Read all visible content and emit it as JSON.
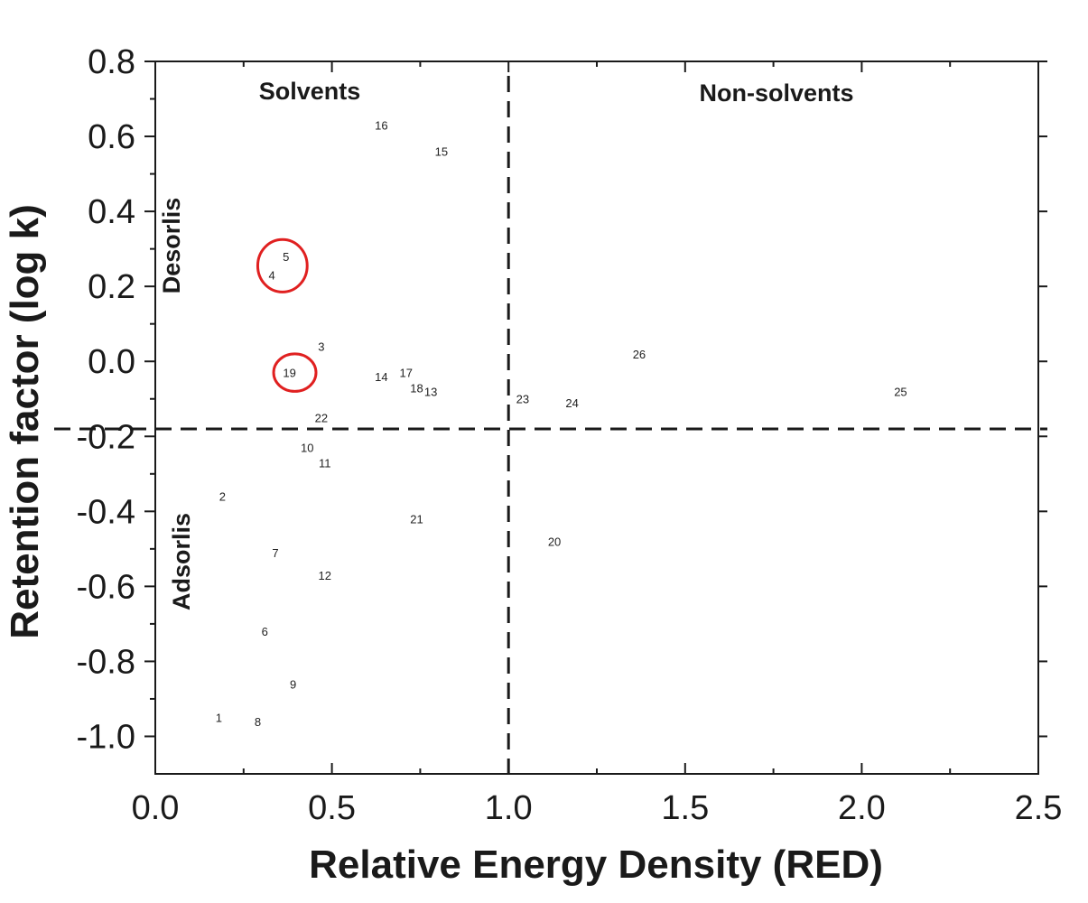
{
  "chart_data": {
    "type": "scatter",
    "title": "",
    "xlabel": "Relative Energy Density (RED)",
    "ylabel": "Retention factor (log k)",
    "xlim": [
      0.0,
      2.5
    ],
    "ylim": [
      -1.1,
      0.8
    ],
    "xticks": [
      {
        "value": 0.0,
        "label": "0.0"
      },
      {
        "value": 0.5,
        "label": "0.5"
      },
      {
        "value": 1.0,
        "label": "1.0"
      },
      {
        "value": 1.5,
        "label": "1.5"
      },
      {
        "value": 2.0,
        "label": "2.0"
      },
      {
        "value": 2.5,
        "label": "2.5"
      }
    ],
    "yticks": [
      {
        "value": 0.8,
        "label": "0.8"
      },
      {
        "value": 0.6,
        "label": "0.6"
      },
      {
        "value": 0.4,
        "label": "0.4"
      },
      {
        "value": 0.2,
        "label": "0.2"
      },
      {
        "value": 0.0,
        "label": "0.0"
      },
      {
        "value": -0.2,
        "label": "-0.2"
      },
      {
        "value": -0.4,
        "label": "-0.4"
      },
      {
        "value": -0.6,
        "label": "-0.6"
      },
      {
        "value": -0.8,
        "label": "-0.8"
      },
      {
        "value": -1.0,
        "label": "-1.0"
      }
    ],
    "grid": false,
    "reference_lines": {
      "vertical_x": 1.0,
      "horizontal_y": -0.18
    },
    "regions": {
      "solvents": "Solvents",
      "non_solvents": "Non-solvents",
      "desorlis": "Desorlis",
      "adsorlis": "Adsorlis"
    },
    "points": [
      {
        "label": "1",
        "x": 0.18,
        "y": -0.95
      },
      {
        "label": "2",
        "x": 0.19,
        "y": -0.36
      },
      {
        "label": "3",
        "x": 0.47,
        "y": 0.04
      },
      {
        "label": "4",
        "x": 0.33,
        "y": 0.23
      },
      {
        "label": "5",
        "x": 0.37,
        "y": 0.28
      },
      {
        "label": "6",
        "x": 0.31,
        "y": -0.72
      },
      {
        "label": "7",
        "x": 0.34,
        "y": -0.51
      },
      {
        "label": "8",
        "x": 0.29,
        "y": -0.96
      },
      {
        "label": "9",
        "x": 0.39,
        "y": -0.86
      },
      {
        "label": "10",
        "x": 0.43,
        "y": -0.23
      },
      {
        "label": "11",
        "x": 0.48,
        "y": -0.27
      },
      {
        "label": "12",
        "x": 0.48,
        "y": -0.57
      },
      {
        "label": "13",
        "x": 0.78,
        "y": -0.08
      },
      {
        "label": "14",
        "x": 0.64,
        "y": -0.04
      },
      {
        "label": "15",
        "x": 0.81,
        "y": 0.56
      },
      {
        "label": "16",
        "x": 0.64,
        "y": 0.63
      },
      {
        "label": "17",
        "x": 0.71,
        "y": -0.03
      },
      {
        "label": "18",
        "x": 0.74,
        "y": -0.07
      },
      {
        "label": "19",
        "x": 0.38,
        "y": -0.03
      },
      {
        "label": "20",
        "x": 1.13,
        "y": -0.48
      },
      {
        "label": "21",
        "x": 0.74,
        "y": -0.42
      },
      {
        "label": "22",
        "x": 0.47,
        "y": -0.15
      },
      {
        "label": "23",
        "x": 1.04,
        "y": -0.1
      },
      {
        "label": "24",
        "x": 1.18,
        "y": -0.11
      },
      {
        "label": "25",
        "x": 2.11,
        "y": -0.08
      },
      {
        "label": "26",
        "x": 1.37,
        "y": 0.02
      }
    ],
    "highlight_circles": [
      {
        "cx": 0.36,
        "cy": 0.255,
        "rx": 0.07,
        "ry": 0.07,
        "color": "#e02020"
      },
      {
        "cx": 0.395,
        "cy": -0.03,
        "rx": 0.06,
        "ry": 0.05,
        "color": "#e02020"
      }
    ]
  }
}
